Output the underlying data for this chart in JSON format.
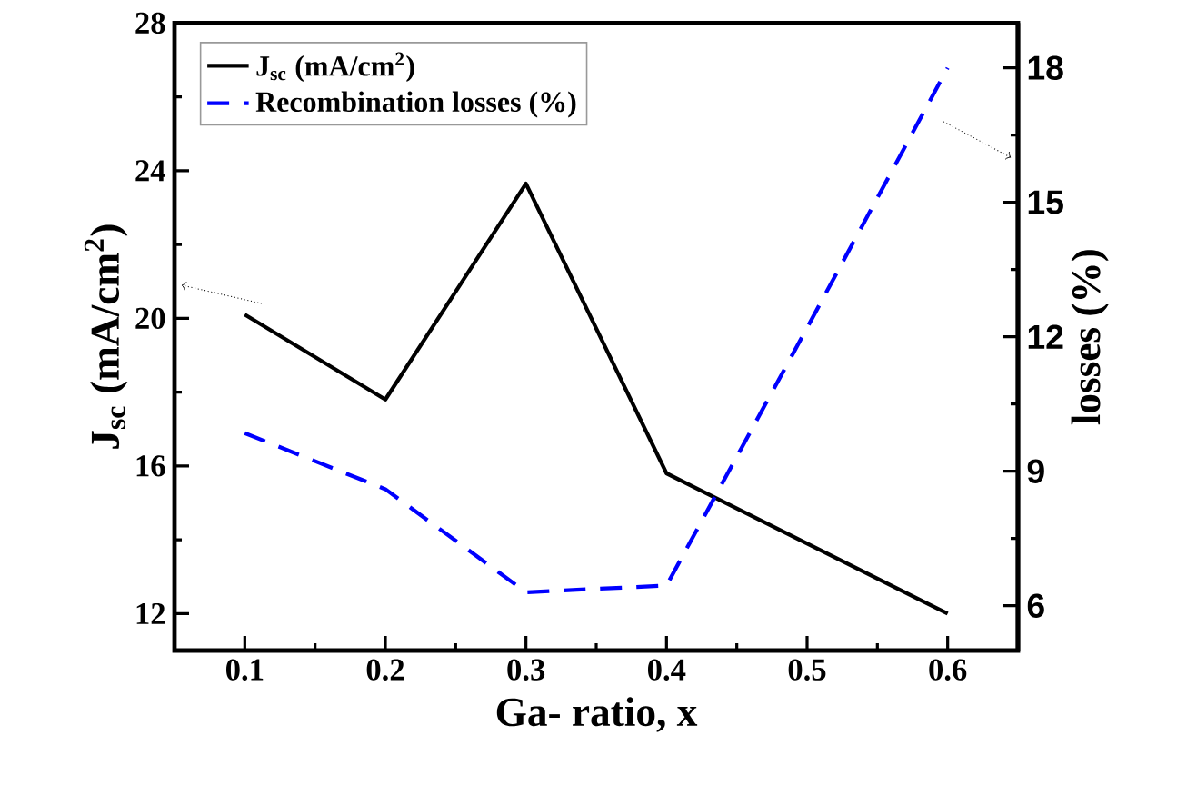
{
  "chart_data": {
    "type": "line",
    "xlabel": "Ga- ratio, x",
    "ylabel": "J$_{sc}$ (mA/cm$^{2}$)",
    "y2label": "losses (%)",
    "x": [
      0.1,
      0.2,
      0.3,
      0.4,
      0.5,
      0.6
    ],
    "series": [
      {
        "name": "J$_{sc}$ (mA/cm$^{2}$)",
        "color": "#000000",
        "line_style": "solid",
        "values": [
          20.1,
          17.8,
          23.65,
          15.8,
          13.9,
          12.0
        ]
      },
      {
        "name": "Recombination losses (%)",
        "color": "#0000ff",
        "line_style": "dashed",
        "axis": "y2",
        "values": [
          9.85,
          8.6,
          6.3,
          6.45,
          12.2,
          18.0
        ]
      }
    ],
    "xlim": [
      0.05,
      0.65
    ],
    "xticks": [
      0.1,
      0.2,
      0.3,
      0.4,
      0.5,
      0.6
    ],
    "ylim": [
      11,
      28
    ],
    "yticks": [
      12,
      16,
      20,
      24,
      28
    ],
    "y2lim": [
      5,
      19
    ],
    "y2ticks": [
      6,
      9,
      12,
      15,
      18
    ],
    "legend": "top left",
    "marker": "none",
    "grid": false
  }
}
